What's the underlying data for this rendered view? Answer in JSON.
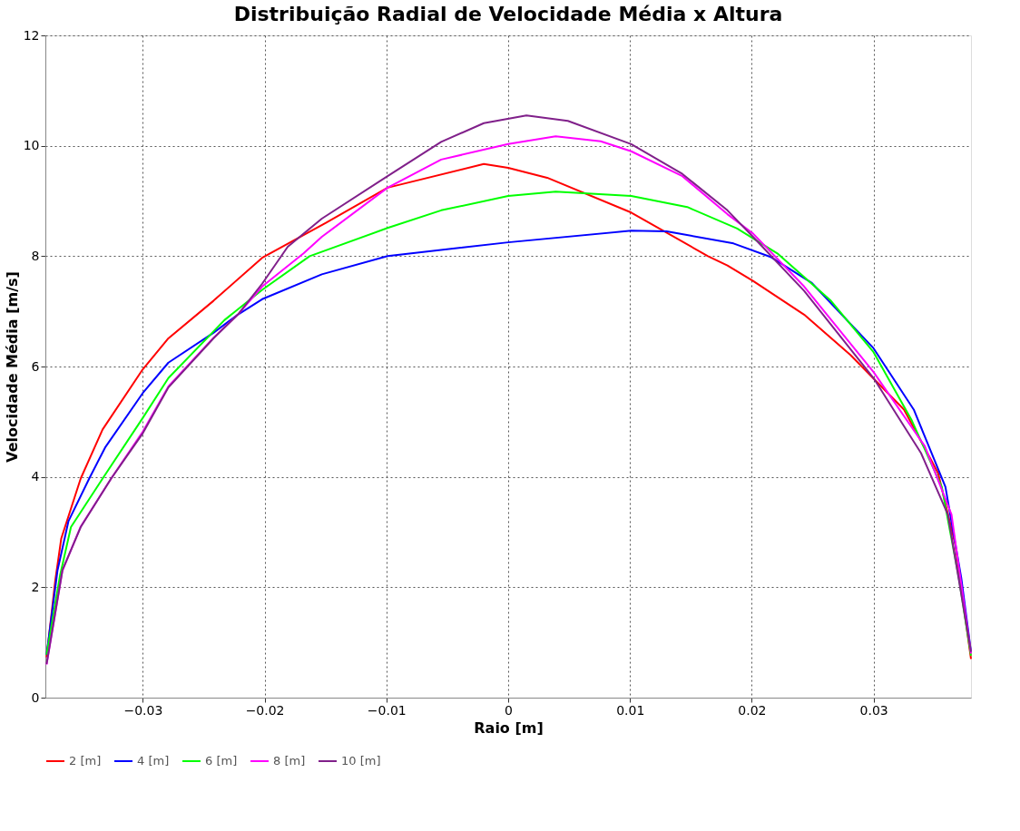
{
  "chart_data": {
    "type": "line",
    "title": "Distribuição Radial de Velocidade Média x Altura",
    "xlabel": "Raio [m]",
    "ylabel": "Velocidade Média [m/s]",
    "xlim": [
      -0.038,
      0.038
    ],
    "ylim": [
      0,
      12
    ],
    "xticks": [
      -0.03,
      -0.02,
      -0.01,
      0,
      0.01,
      0.02,
      0.03
    ],
    "yticks": [
      0,
      2,
      4,
      6,
      8,
      10,
      12
    ],
    "grid": true,
    "legend": "bottom",
    "line_style": "solid",
    "marker": "none",
    "series": [
      {
        "name": "2 [m]",
        "color": "#ff0000",
        "x": [
          -0.0379,
          -0.0372,
          -0.0367,
          -0.0351,
          -0.0333,
          -0.03,
          -0.0279,
          -0.0242,
          -0.0202,
          -0.015,
          -0.0099,
          -0.002,
          0,
          0.0032,
          0.0101,
          0.0164,
          0.018,
          0.0201,
          0.0243,
          0.0281,
          0.0325,
          0.0353,
          0.0367,
          0.038
        ],
        "values": [
          0.73,
          2.1,
          2.88,
          3.97,
          4.86,
          5.95,
          6.51,
          7.19,
          7.97,
          8.6,
          9.24,
          9.67,
          9.6,
          9.42,
          8.79,
          8.0,
          7.83,
          7.55,
          6.94,
          6.21,
          5.22,
          4.07,
          2.78,
          0.7
        ]
      },
      {
        "name": "4 [m]",
        "color": "#0000ff",
        "x": [
          -0.0379,
          -0.037,
          -0.0361,
          -0.0344,
          -0.0331,
          -0.03,
          -0.0279,
          -0.0242,
          -0.0222,
          -0.0202,
          -0.0153,
          -0.0099,
          0,
          0.0101,
          0.013,
          0.0185,
          0.0216,
          0.0249,
          0.03,
          0.0333,
          0.0359,
          0.0372,
          0.038
        ],
        "values": [
          0.78,
          2.31,
          3.2,
          3.97,
          4.53,
          5.52,
          6.07,
          6.61,
          6.94,
          7.22,
          7.67,
          8.0,
          8.25,
          8.46,
          8.45,
          8.23,
          7.98,
          7.52,
          6.33,
          5.22,
          3.82,
          2.17,
          0.83
        ]
      },
      {
        "name": "6 [m]",
        "color": "#00ff00",
        "x": [
          -0.0379,
          -0.0368,
          -0.0359,
          -0.0333,
          -0.03,
          -0.0279,
          -0.0233,
          -0.0202,
          -0.0163,
          -0.0099,
          -0.0055,
          0,
          0.0039,
          0.0101,
          0.0147,
          0.0188,
          0.0221,
          0.0265,
          0.03,
          0.0331,
          0.0356,
          0.037,
          0.038
        ],
        "values": [
          0.78,
          2.21,
          3.09,
          3.97,
          5.07,
          5.79,
          6.84,
          7.39,
          8.0,
          8.51,
          8.83,
          9.09,
          9.17,
          9.09,
          8.89,
          8.5,
          8.05,
          7.19,
          6.26,
          5.04,
          3.82,
          2.17,
          0.76
        ]
      },
      {
        "name": "8 [m]",
        "color": "#ff00ff",
        "x": [
          -0.0379,
          -0.0366,
          -0.0351,
          -0.0326,
          -0.03,
          -0.0279,
          -0.0242,
          -0.0222,
          -0.0202,
          -0.0168,
          -0.0153,
          -0.0099,
          -0.0055,
          0,
          0.0039,
          0.0076,
          0.0101,
          0.0143,
          0.018,
          0.0201,
          0.0243,
          0.03,
          0.0342,
          0.0364,
          0.038
        ],
        "values": [
          0.6,
          2.3,
          3.1,
          3.97,
          4.82,
          5.64,
          6.52,
          6.94,
          7.45,
          8.05,
          8.35,
          9.24,
          9.75,
          10.03,
          10.17,
          10.08,
          9.9,
          9.45,
          8.76,
          8.41,
          7.45,
          5.9,
          4.56,
          3.32,
          0.8
        ]
      },
      {
        "name": "10 [m]",
        "color": "#80208a",
        "x": [
          -0.0379,
          -0.0366,
          -0.0351,
          -0.0326,
          -0.03,
          -0.0279,
          -0.0242,
          -0.0222,
          -0.0202,
          -0.0181,
          -0.0153,
          -0.0099,
          -0.0055,
          -0.002,
          0.0015,
          0.0049,
          0.0101,
          0.0143,
          0.018,
          0.0201,
          0.0243,
          0.03,
          0.0339,
          0.0361,
          0.038
        ],
        "values": [
          0.61,
          2.31,
          3.09,
          3.97,
          4.79,
          5.62,
          6.51,
          6.94,
          7.5,
          8.17,
          8.68,
          9.45,
          10.07,
          10.41,
          10.55,
          10.45,
          10.03,
          9.49,
          8.83,
          8.35,
          7.37,
          5.79,
          4.43,
          3.32,
          0.83
        ]
      }
    ]
  }
}
